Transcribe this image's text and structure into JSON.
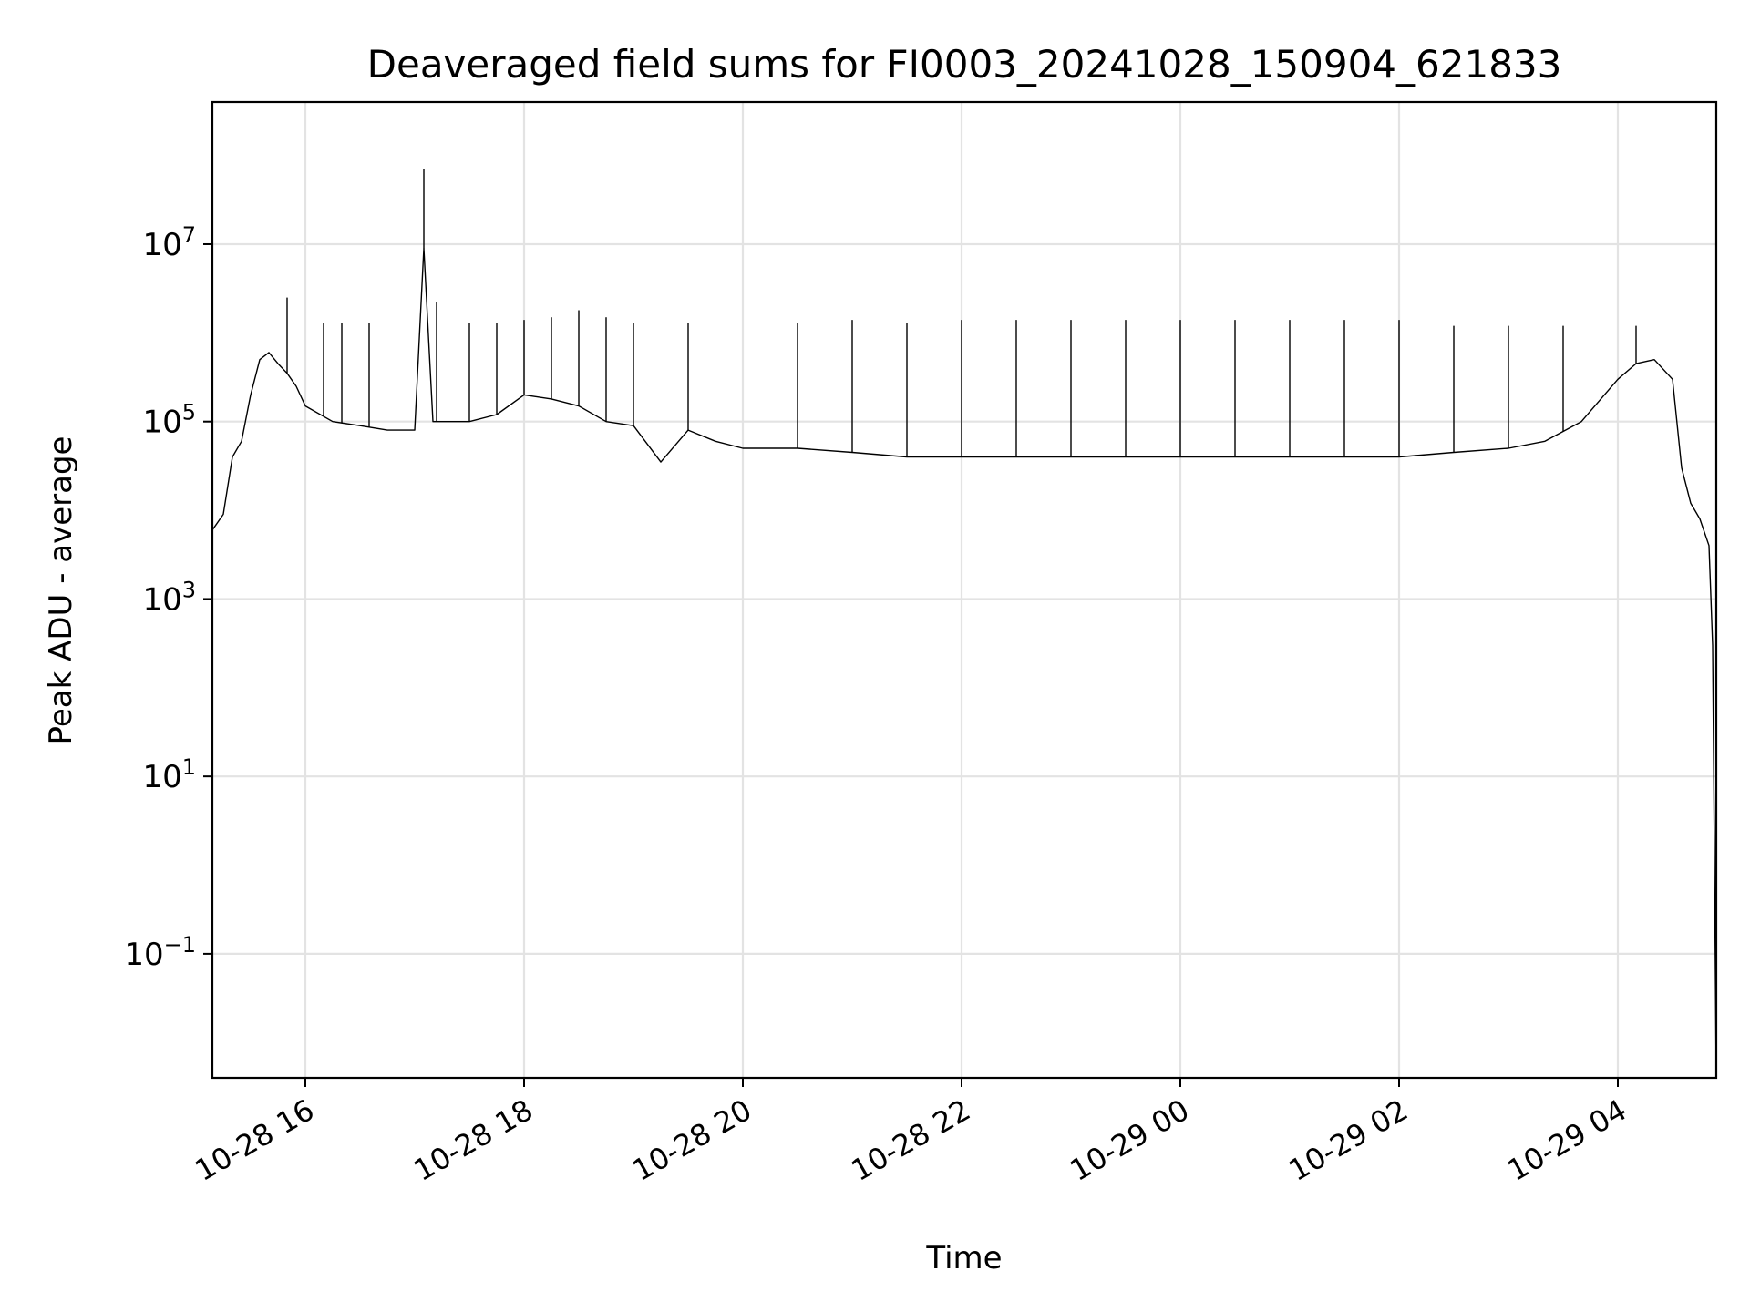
{
  "chart_data": {
    "type": "line",
    "title": "Deaveraged field sums for FI0003_20241028_150904_621833",
    "xlabel": "Time",
    "ylabel": "Peak ADU - average",
    "yscale": "log",
    "grid": true,
    "ylim": [
      0.004,
      400000000
    ],
    "xlim": [
      "2024-10-28 15:09",
      "2024-10-29 04:54"
    ],
    "xticks": [
      {
        "t": "2024-10-28 16:00",
        "label": "10-28 16"
      },
      {
        "t": "2024-10-28 18:00",
        "label": "10-28 18"
      },
      {
        "t": "2024-10-28 20:00",
        "label": "10-28 20"
      },
      {
        "t": "2024-10-28 22:00",
        "label": "10-28 22"
      },
      {
        "t": "2024-10-29 00:00",
        "label": "10-29 00"
      },
      {
        "t": "2024-10-29 02:00",
        "label": "10-29 02"
      },
      {
        "t": "2024-10-29 04:00",
        "label": "10-29 04"
      }
    ],
    "yticks": [
      {
        "value": 0.1,
        "base": "10",
        "exp": "−1"
      },
      {
        "value": 10,
        "base": "10",
        "exp": "1"
      },
      {
        "value": 1000,
        "base": "10",
        "exp": "3"
      },
      {
        "value": 100000,
        "base": "10",
        "exp": "5"
      },
      {
        "value": 10000000,
        "base": "10",
        "exp": "7"
      }
    ],
    "series": [
      {
        "color": "#000000",
        "x": [
          "2024-10-28 15:09",
          "2024-10-28 15:15",
          "2024-10-28 15:20",
          "2024-10-28 15:25",
          "2024-10-28 15:30",
          "2024-10-28 15:35",
          "2024-10-28 15:40",
          "2024-10-28 15:45",
          "2024-10-28 15:50",
          "2024-10-28 15:55",
          "2024-10-28 16:00",
          "2024-10-28 16:15",
          "2024-10-28 16:30",
          "2024-10-28 16:45",
          "2024-10-28 17:00",
          "2024-10-28 17:05",
          "2024-10-28 17:10",
          "2024-10-28 17:30",
          "2024-10-28 17:45",
          "2024-10-28 18:00",
          "2024-10-28 18:15",
          "2024-10-28 18:30",
          "2024-10-28 18:45",
          "2024-10-28 19:00",
          "2024-10-28 19:15",
          "2024-10-28 19:30",
          "2024-10-28 19:45",
          "2024-10-28 20:00",
          "2024-10-28 20:30",
          "2024-10-28 21:00",
          "2024-10-28 21:30",
          "2024-10-28 22:00",
          "2024-10-28 22:30",
          "2024-10-28 23:00",
          "2024-10-28 23:30",
          "2024-10-29 00:00",
          "2024-10-29 00:30",
          "2024-10-29 01:00",
          "2024-10-29 01:30",
          "2024-10-29 02:00",
          "2024-10-29 02:30",
          "2024-10-29 03:00",
          "2024-10-29 03:20",
          "2024-10-29 03:40",
          "2024-10-29 04:00",
          "2024-10-29 04:10",
          "2024-10-29 04:20",
          "2024-10-29 04:30",
          "2024-10-29 04:35",
          "2024-10-29 04:40",
          "2024-10-29 04:45",
          "2024-10-29 04:50",
          "2024-10-29 04:52",
          "2024-10-29 04:54"
        ],
        "y": [
          6000,
          9000,
          40000,
          60000,
          200000,
          500000,
          600000,
          450000,
          350000,
          250000,
          150000,
          100000,
          90000,
          80000,
          80000,
          9000000,
          100000,
          100000,
          120000,
          200000,
          180000,
          150000,
          100000,
          90000,
          35000,
          80000,
          60000,
          50000,
          50000,
          45000,
          40000,
          40000,
          40000,
          40000,
          40000,
          40000,
          40000,
          40000,
          40000,
          40000,
          45000,
          50000,
          60000,
          100000,
          300000,
          450000,
          500000,
          300000,
          30000,
          12000,
          8000,
          4000,
          300,
          0.004
        ]
      }
    ],
    "spikes": [
      {
        "t": "2024-10-28 15:50",
        "y": 2500000
      },
      {
        "t": "2024-10-28 16:10",
        "y": 1300000
      },
      {
        "t": "2024-10-28 16:20",
        "y": 1300000
      },
      {
        "t": "2024-10-28 16:35",
        "y": 1300000
      },
      {
        "t": "2024-10-28 17:05",
        "y": 70000000
      },
      {
        "t": "2024-10-28 17:12",
        "y": 2200000
      },
      {
        "t": "2024-10-28 17:30",
        "y": 1300000
      },
      {
        "t": "2024-10-28 17:45",
        "y": 1300000
      },
      {
        "t": "2024-10-28 18:00",
        "y": 1400000
      },
      {
        "t": "2024-10-28 18:15",
        "y": 1500000
      },
      {
        "t": "2024-10-28 18:30",
        "y": 1800000
      },
      {
        "t": "2024-10-28 18:45",
        "y": 1500000
      },
      {
        "t": "2024-10-28 19:00",
        "y": 1300000
      },
      {
        "t": "2024-10-28 19:30",
        "y": 1300000
      },
      {
        "t": "2024-10-28 20:30",
        "y": 1300000
      },
      {
        "t": "2024-10-28 21:00",
        "y": 1400000
      },
      {
        "t": "2024-10-28 21:30",
        "y": 1300000
      },
      {
        "t": "2024-10-28 22:00",
        "y": 1400000
      },
      {
        "t": "2024-10-28 22:30",
        "y": 1400000
      },
      {
        "t": "2024-10-28 23:00",
        "y": 1400000
      },
      {
        "t": "2024-10-28 23:30",
        "y": 1400000
      },
      {
        "t": "2024-10-29 00:00",
        "y": 1400000
      },
      {
        "t": "2024-10-29 00:30",
        "y": 1400000
      },
      {
        "t": "2024-10-29 01:00",
        "y": 1400000
      },
      {
        "t": "2024-10-29 01:30",
        "y": 1400000
      },
      {
        "t": "2024-10-29 02:00",
        "y": 1400000
      },
      {
        "t": "2024-10-29 02:30",
        "y": 1200000
      },
      {
        "t": "2024-10-29 03:00",
        "y": 1200000
      },
      {
        "t": "2024-10-29 03:30",
        "y": 1200000
      },
      {
        "t": "2024-10-29 04:10",
        "y": 1200000
      }
    ]
  }
}
